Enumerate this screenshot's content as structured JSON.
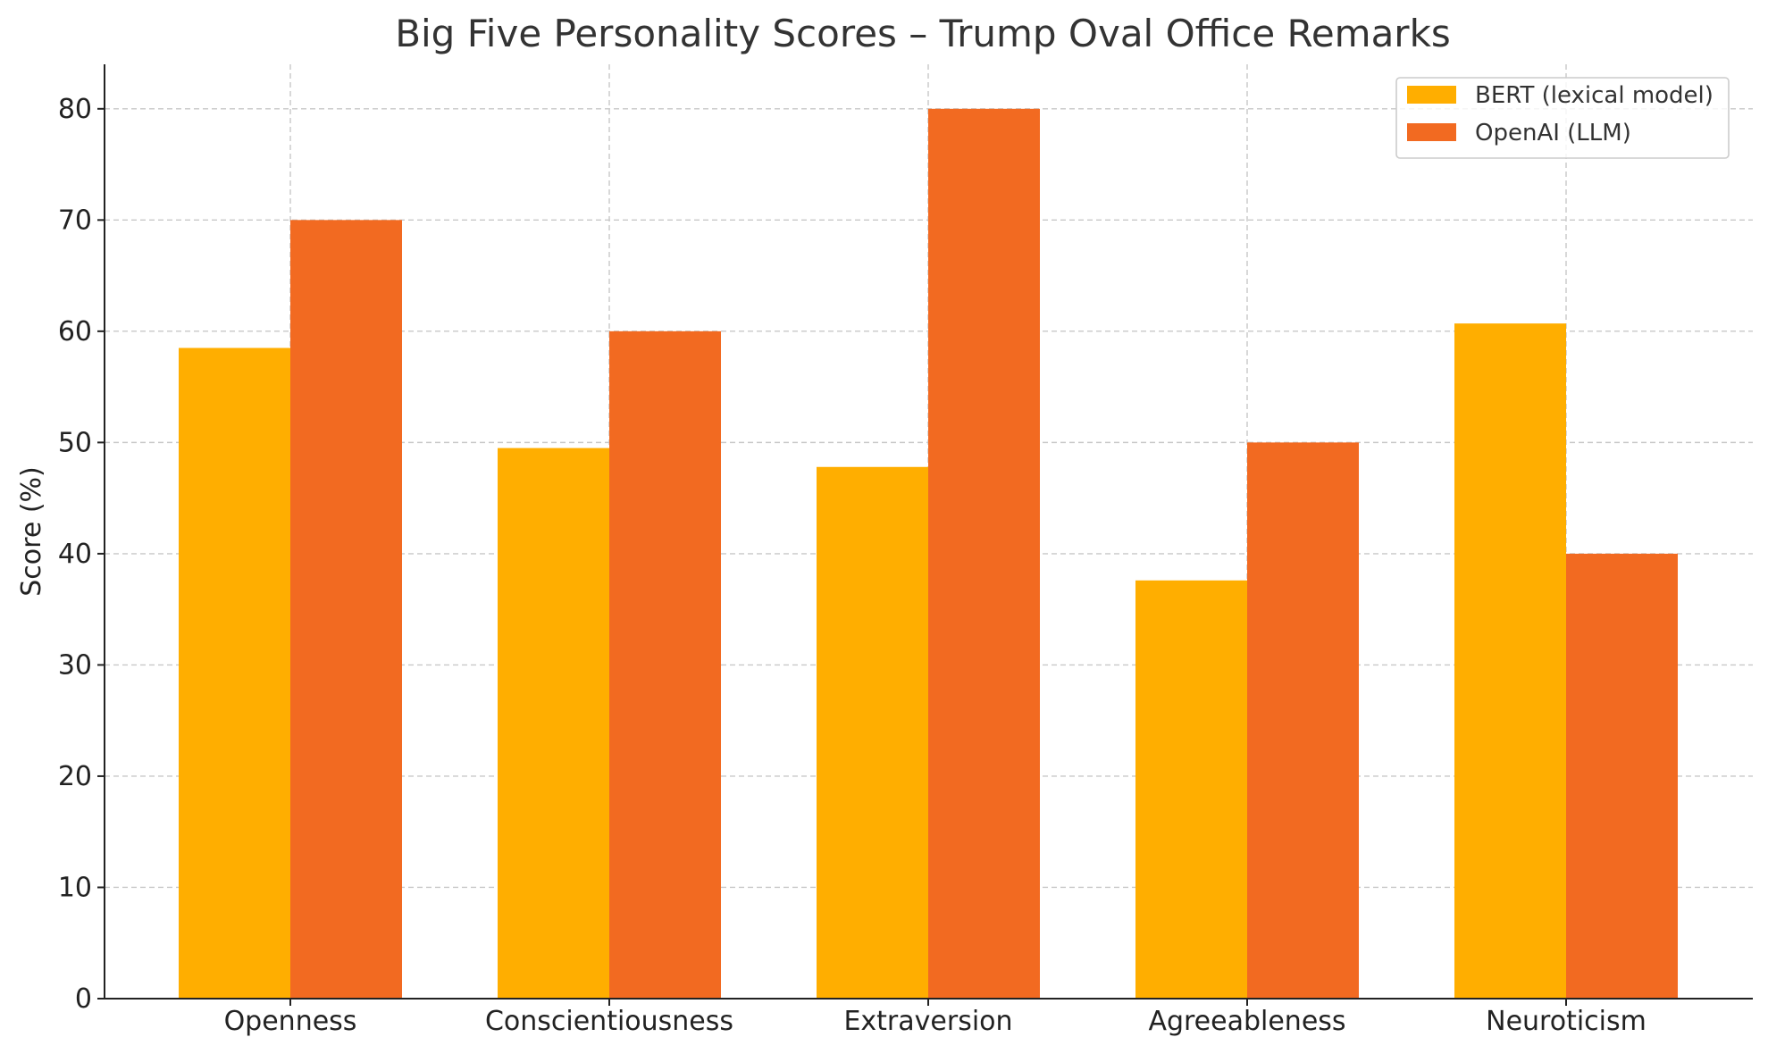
{
  "chart_data": {
    "type": "bar",
    "title": "Big Five Personality Scores – Trump Oval Office Remarks",
    "xlabel": "",
    "ylabel": "Score (%)",
    "ylim": [
      0,
      84
    ],
    "yticks": [
      0,
      10,
      20,
      30,
      40,
      50,
      60,
      70,
      80
    ],
    "categories": [
      "Openness",
      "Conscientiousness",
      "Extraversion",
      "Agreeableness",
      "Neuroticism"
    ],
    "series": [
      {
        "name": "BERT (lexical model)",
        "color": "#FFAE00",
        "values": [
          58.5,
          49.5,
          47.8,
          37.6,
          60.7
        ]
      },
      {
        "name": "OpenAI (LLM)",
        "color": "#F26A21",
        "values": [
          70,
          60,
          80,
          50,
          40
        ]
      }
    ],
    "grid": true,
    "legend_position": "top-right"
  }
}
